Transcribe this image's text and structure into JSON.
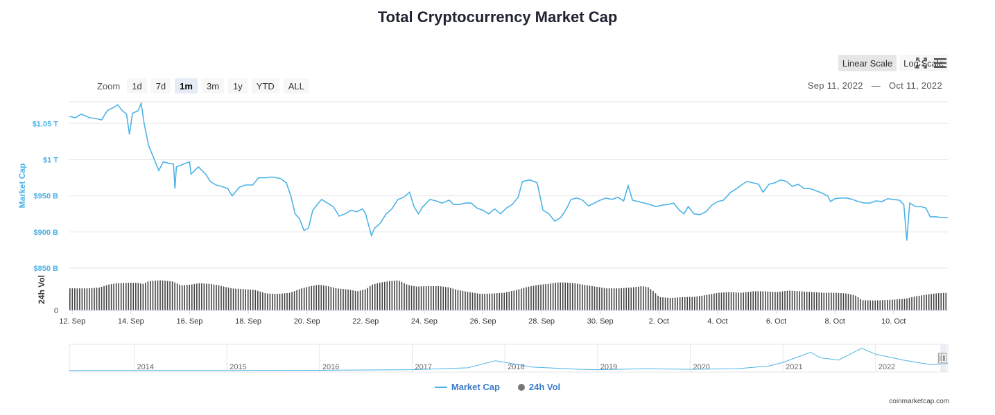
{
  "title": "Total Cryptocurrency Market Cap",
  "zoom": {
    "label": "Zoom",
    "buttons": [
      "1d",
      "7d",
      "1m",
      "3m",
      "1y",
      "YTD",
      "ALL"
    ],
    "active": "1m"
  },
  "scale": {
    "linear": "Linear Scale",
    "log": "Log Scale",
    "active": "linear"
  },
  "icons": {
    "fullscreen": "fullscreen-icon",
    "menu": "hamburger-menu-icon"
  },
  "date_range": {
    "from": "Sep 11, 2022",
    "separator": "—",
    "to": "Oct 11, 2022"
  },
  "legend": {
    "market_cap": "Market Cap",
    "volume": "24h Vol"
  },
  "credit": "coinmarketcap.com",
  "colors": {
    "line": "#4db3e6",
    "volume": "#444444",
    "axis_label": "#4db3e6",
    "grid": "#e6e6e6",
    "navigator_mask": "#e1e6ef"
  },
  "chart_data": {
    "type": "line",
    "title": "Total Cryptocurrency Market Cap",
    "ylabel": "Market Cap",
    "y2label": "24h Vol",
    "ylim": [
      850,
      1080
    ],
    "y_ticks": [
      {
        "value": 1050,
        "label": "$1.05 T"
      },
      {
        "value": 1000,
        "label": "$1 T"
      },
      {
        "value": 950,
        "label": "$950 B"
      },
      {
        "value": 900,
        "label": "$900 B"
      },
      {
        "value": 850,
        "label": "$850 B"
      }
    ],
    "vol_axis_label": "0",
    "xlim": [
      11.9,
      41.85
    ],
    "x_ticks": [
      {
        "day": 12,
        "label": "12. Sep"
      },
      {
        "day": 14,
        "label": "14. Sep"
      },
      {
        "day": 16,
        "label": "16. Sep"
      },
      {
        "day": 18,
        "label": "18. Sep"
      },
      {
        "day": 20,
        "label": "20. Sep"
      },
      {
        "day": 22,
        "label": "22. Sep"
      },
      {
        "day": 24,
        "label": "24. Sep"
      },
      {
        "day": 26,
        "label": "26. Sep"
      },
      {
        "day": 28,
        "label": "28. Sep"
      },
      {
        "day": 30,
        "label": "30. Sep"
      },
      {
        "day": 32,
        "label": "2. Oct"
      },
      {
        "day": 34,
        "label": "4. Oct"
      },
      {
        "day": 36,
        "label": "6. Oct"
      },
      {
        "day": 38,
        "label": "8. Oct"
      },
      {
        "day": 40,
        "label": "10. Oct"
      }
    ],
    "series": [
      {
        "name": "Market Cap",
        "unit": "billion USD",
        "points": [
          [
            11.9,
            1060
          ],
          [
            12.1,
            1058
          ],
          [
            12.3,
            1063
          ],
          [
            12.6,
            1058
          ],
          [
            12.8,
            1057
          ],
          [
            13.0,
            1055
          ],
          [
            13.2,
            1068
          ],
          [
            13.4,
            1072
          ],
          [
            13.55,
            1076
          ],
          [
            13.7,
            1068
          ],
          [
            13.85,
            1063
          ],
          [
            13.95,
            1035
          ],
          [
            14.05,
            1064
          ],
          [
            14.25,
            1068
          ],
          [
            14.35,
            1078
          ],
          [
            14.45,
            1050
          ],
          [
            14.6,
            1020
          ],
          [
            14.75,
            1005
          ],
          [
            14.95,
            985
          ],
          [
            15.1,
            997
          ],
          [
            15.3,
            995
          ],
          [
            15.45,
            994
          ],
          [
            15.5,
            960
          ],
          [
            15.55,
            990
          ],
          [
            15.8,
            994
          ],
          [
            16.0,
            997
          ],
          [
            16.05,
            980
          ],
          [
            16.3,
            990
          ],
          [
            16.55,
            980
          ],
          [
            16.7,
            970
          ],
          [
            16.9,
            965
          ],
          [
            17.1,
            963
          ],
          [
            17.3,
            960
          ],
          [
            17.45,
            950
          ],
          [
            17.7,
            962
          ],
          [
            17.9,
            965
          ],
          [
            18.15,
            965
          ],
          [
            18.35,
            975
          ],
          [
            18.6,
            975
          ],
          [
            18.8,
            976
          ],
          [
            19.1,
            974
          ],
          [
            19.3,
            968
          ],
          [
            19.45,
            950
          ],
          [
            19.6,
            925
          ],
          [
            19.75,
            918
          ],
          [
            19.9,
            902
          ],
          [
            20.05,
            905
          ],
          [
            20.2,
            930
          ],
          [
            20.35,
            938
          ],
          [
            20.5,
            945
          ],
          [
            20.7,
            940
          ],
          [
            20.9,
            935
          ],
          [
            21.1,
            922
          ],
          [
            21.3,
            925
          ],
          [
            21.5,
            930
          ],
          [
            21.7,
            928
          ],
          [
            21.9,
            932
          ],
          [
            22.0,
            925
          ],
          [
            22.1,
            910
          ],
          [
            22.2,
            895
          ],
          [
            22.3,
            905
          ],
          [
            22.5,
            912
          ],
          [
            22.7,
            925
          ],
          [
            22.9,
            932
          ],
          [
            23.1,
            945
          ],
          [
            23.3,
            948
          ],
          [
            23.5,
            955
          ],
          [
            23.65,
            935
          ],
          [
            23.8,
            925
          ],
          [
            23.95,
            935
          ],
          [
            24.2,
            945
          ],
          [
            24.4,
            943
          ],
          [
            24.6,
            940
          ],
          [
            24.85,
            944
          ],
          [
            25.0,
            938
          ],
          [
            25.2,
            938
          ],
          [
            25.4,
            940
          ],
          [
            25.6,
            940
          ],
          [
            25.8,
            933
          ],
          [
            26.0,
            930
          ],
          [
            26.2,
            925
          ],
          [
            26.4,
            932
          ],
          [
            26.6,
            925
          ],
          [
            26.8,
            933
          ],
          [
            27.0,
            938
          ],
          [
            27.2,
            948
          ],
          [
            27.35,
            970
          ],
          [
            27.6,
            972
          ],
          [
            27.85,
            968
          ],
          [
            28.05,
            930
          ],
          [
            28.25,
            925
          ],
          [
            28.45,
            915
          ],
          [
            28.65,
            920
          ],
          [
            28.85,
            932
          ],
          [
            29.0,
            945
          ],
          [
            29.2,
            947
          ],
          [
            29.4,
            944
          ],
          [
            29.6,
            936
          ],
          [
            29.8,
            940
          ],
          [
            30.0,
            944
          ],
          [
            30.2,
            947
          ],
          [
            30.4,
            945
          ],
          [
            30.6,
            948
          ],
          [
            30.8,
            943
          ],
          [
            30.95,
            964
          ],
          [
            31.1,
            944
          ],
          [
            31.3,
            942
          ],
          [
            31.5,
            940
          ],
          [
            31.7,
            938
          ],
          [
            31.9,
            935
          ],
          [
            32.1,
            937
          ],
          [
            32.3,
            938
          ],
          [
            32.5,
            940
          ],
          [
            32.7,
            930
          ],
          [
            32.85,
            925
          ],
          [
            33.0,
            935
          ],
          [
            33.2,
            925
          ],
          [
            33.4,
            924
          ],
          [
            33.6,
            928
          ],
          [
            33.8,
            937
          ],
          [
            34.0,
            942
          ],
          [
            34.2,
            944
          ],
          [
            34.45,
            955
          ],
          [
            34.65,
            960
          ],
          [
            34.85,
            966
          ],
          [
            35.0,
            970
          ],
          [
            35.2,
            968
          ],
          [
            35.4,
            966
          ],
          [
            35.55,
            955
          ],
          [
            35.75,
            966
          ],
          [
            35.95,
            968
          ],
          [
            36.15,
            972
          ],
          [
            36.35,
            970
          ],
          [
            36.55,
            963
          ],
          [
            36.75,
            966
          ],
          [
            36.95,
            960
          ],
          [
            37.15,
            960
          ],
          [
            37.35,
            957
          ],
          [
            37.55,
            954
          ],
          [
            37.75,
            950
          ],
          [
            37.85,
            942
          ],
          [
            38.0,
            946
          ],
          [
            38.2,
            947
          ],
          [
            38.4,
            947
          ],
          [
            38.6,
            945
          ],
          [
            38.8,
            942
          ],
          [
            39.0,
            940
          ],
          [
            39.2,
            940
          ],
          [
            39.4,
            943
          ],
          [
            39.6,
            942
          ],
          [
            39.8,
            946
          ],
          [
            40.0,
            945
          ],
          [
            40.2,
            944
          ],
          [
            40.35,
            938
          ],
          [
            40.45,
            888
          ],
          [
            40.55,
            940
          ],
          [
            40.75,
            935
          ],
          [
            40.95,
            935
          ],
          [
            41.1,
            933
          ],
          [
            41.25,
            921
          ],
          [
            41.45,
            921
          ],
          [
            41.65,
            920
          ],
          [
            41.85,
            920
          ]
        ]
      },
      {
        "name": "24h Vol",
        "unit": "relative",
        "points": [
          [
            11.9,
            0.6
          ],
          [
            12.5,
            0.6
          ],
          [
            12.9,
            0.62
          ],
          [
            13.2,
            0.7
          ],
          [
            13.5,
            0.74
          ],
          [
            13.9,
            0.75
          ],
          [
            14.2,
            0.75
          ],
          [
            14.4,
            0.72
          ],
          [
            14.6,
            0.8
          ],
          [
            15.0,
            0.82
          ],
          [
            15.4,
            0.79
          ],
          [
            15.7,
            0.68
          ],
          [
            16.0,
            0.7
          ],
          [
            16.3,
            0.74
          ],
          [
            16.7,
            0.72
          ],
          [
            17.0,
            0.68
          ],
          [
            17.4,
            0.6
          ],
          [
            17.8,
            0.58
          ],
          [
            18.2,
            0.56
          ],
          [
            18.6,
            0.46
          ],
          [
            19.0,
            0.45
          ],
          [
            19.4,
            0.48
          ],
          [
            19.8,
            0.6
          ],
          [
            20.1,
            0.66
          ],
          [
            20.4,
            0.7
          ],
          [
            20.7,
            0.66
          ],
          [
            21.0,
            0.6
          ],
          [
            21.4,
            0.57
          ],
          [
            21.7,
            0.52
          ],
          [
            22.0,
            0.58
          ],
          [
            22.2,
            0.7
          ],
          [
            22.5,
            0.76
          ],
          [
            22.8,
            0.8
          ],
          [
            23.1,
            0.82
          ],
          [
            23.4,
            0.7
          ],
          [
            23.7,
            0.65
          ],
          [
            24.1,
            0.66
          ],
          [
            24.5,
            0.66
          ],
          [
            24.8,
            0.63
          ],
          [
            25.1,
            0.56
          ],
          [
            25.5,
            0.5
          ],
          [
            25.9,
            0.45
          ],
          [
            26.3,
            0.46
          ],
          [
            26.7,
            0.48
          ],
          [
            27.1,
            0.55
          ],
          [
            27.5,
            0.64
          ],
          [
            27.9,
            0.7
          ],
          [
            28.2,
            0.72
          ],
          [
            28.5,
            0.76
          ],
          [
            28.8,
            0.76
          ],
          [
            29.1,
            0.74
          ],
          [
            29.4,
            0.7
          ],
          [
            29.8,
            0.65
          ],
          [
            30.2,
            0.6
          ],
          [
            30.6,
            0.6
          ],
          [
            31.0,
            0.62
          ],
          [
            31.4,
            0.66
          ],
          [
            31.6,
            0.64
          ],
          [
            31.8,
            0.52
          ],
          [
            32.0,
            0.36
          ],
          [
            32.4,
            0.34
          ],
          [
            32.8,
            0.36
          ],
          [
            33.2,
            0.37
          ],
          [
            33.6,
            0.42
          ],
          [
            34.0,
            0.48
          ],
          [
            34.4,
            0.5
          ],
          [
            34.8,
            0.48
          ],
          [
            35.2,
            0.52
          ],
          [
            35.6,
            0.52
          ],
          [
            36.0,
            0.5
          ],
          [
            36.4,
            0.54
          ],
          [
            36.8,
            0.52
          ],
          [
            37.2,
            0.5
          ],
          [
            37.6,
            0.48
          ],
          [
            38.0,
            0.48
          ],
          [
            38.4,
            0.46
          ],
          [
            38.7,
            0.4
          ],
          [
            38.9,
            0.28
          ],
          [
            39.3,
            0.27
          ],
          [
            39.7,
            0.28
          ],
          [
            40.1,
            0.3
          ],
          [
            40.4,
            0.32
          ],
          [
            40.7,
            0.38
          ],
          [
            41.1,
            0.43
          ],
          [
            41.5,
            0.47
          ],
          [
            41.85,
            0.48
          ]
        ]
      }
    ],
    "navigator": {
      "year_labels": [
        "2014",
        "2015",
        "2016",
        "2017",
        "2018",
        "2019",
        "2020",
        "2021",
        "2022"
      ],
      "series": [
        [
          2013.3,
          0.01
        ],
        [
          2014,
          0.01
        ],
        [
          2015,
          0.01
        ],
        [
          2016,
          0.015
        ],
        [
          2017,
          0.04
        ],
        [
          2017.6,
          0.12
        ],
        [
          2017.9,
          0.42
        ],
        [
          2018.05,
          0.32
        ],
        [
          2018.3,
          0.15
        ],
        [
          2018.8,
          0.06
        ],
        [
          2019,
          0.04
        ],
        [
          2019.5,
          0.08
        ],
        [
          2020,
          0.06
        ],
        [
          2020.5,
          0.08
        ],
        [
          2020.85,
          0.2
        ],
        [
          2021.0,
          0.35
        ],
        [
          2021.3,
          0.78
        ],
        [
          2021.4,
          0.55
        ],
        [
          2021.6,
          0.45
        ],
        [
          2021.85,
          0.95
        ],
        [
          2022.0,
          0.7
        ],
        [
          2022.3,
          0.45
        ],
        [
          2022.6,
          0.25
        ],
        [
          2022.78,
          0.3
        ]
      ]
    },
    "legend_position": "bottom-center",
    "grid": true
  }
}
